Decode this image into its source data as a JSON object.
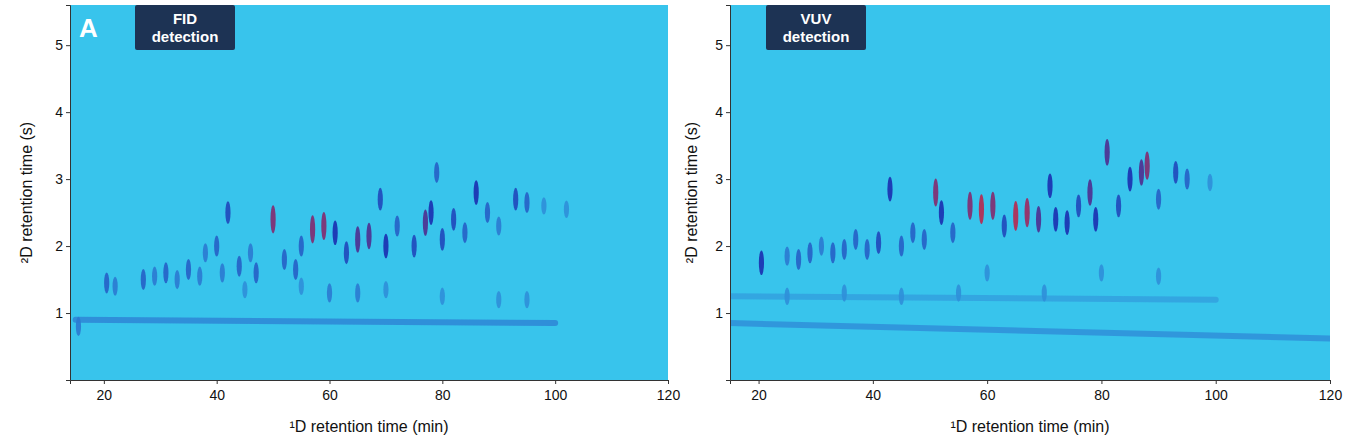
{
  "chart_data": [
    {
      "type": "heatmap",
      "label": "A",
      "title": "FID detection",
      "xlabel": "¹D retention time (min)",
      "ylabel": "²D retention time (s)",
      "xlim": [
        14,
        120
      ],
      "xticks": [
        20,
        40,
        60,
        80,
        100,
        120
      ],
      "ylim": [
        0,
        5.6
      ],
      "yticks": [
        1,
        2,
        3,
        4,
        5
      ],
      "zlim": [
        0,
        1
      ],
      "peaks": {
        "x": [
          15.5,
          20.5,
          22,
          27,
          29,
          31,
          33,
          35,
          37,
          38,
          40,
          41,
          42,
          44,
          46,
          47,
          50,
          52,
          54,
          55,
          57,
          59,
          61,
          63,
          65,
          67,
          69,
          70,
          72,
          75,
          77,
          78,
          80,
          82,
          84,
          86,
          88,
          90,
          93,
          95,
          98,
          102,
          79,
          45,
          55,
          60,
          65,
          70,
          80,
          90,
          95
        ],
        "y": [
          0.8,
          1.45,
          1.4,
          1.5,
          1.55,
          1.6,
          1.5,
          1.65,
          1.55,
          1.9,
          2.0,
          1.6,
          2.5,
          1.7,
          1.9,
          1.6,
          2.4,
          1.8,
          1.65,
          2.0,
          2.25,
          2.3,
          2.2,
          1.9,
          2.1,
          2.15,
          2.7,
          2.0,
          2.3,
          2.0,
          2.35,
          2.5,
          2.1,
          2.4,
          2.2,
          2.8,
          2.5,
          2.3,
          2.7,
          2.65,
          2.6,
          2.55,
          3.1,
          1.35,
          1.4,
          1.3,
          1.3,
          1.35,
          1.25,
          1.2,
          1.2
        ],
        "intensity": [
          0.4,
          0.5,
          0.4,
          0.5,
          0.4,
          0.5,
          0.4,
          0.5,
          0.4,
          0.4,
          0.5,
          0.4,
          0.6,
          0.5,
          0.4,
          0.5,
          0.9,
          0.5,
          0.5,
          0.5,
          0.9,
          0.9,
          0.7,
          0.6,
          0.8,
          0.8,
          0.6,
          0.7,
          0.5,
          0.6,
          0.8,
          0.7,
          0.6,
          0.6,
          0.5,
          0.7,
          0.5,
          0.4,
          0.6,
          0.5,
          0.3,
          0.3,
          0.5,
          0.3,
          0.3,
          0.4,
          0.4,
          0.3,
          0.3,
          0.3,
          0.3
        ]
      },
      "bands": {
        "x0": [
          15
        ],
        "x1": [
          100
        ],
        "y0": [
          0.9
        ],
        "y1": [
          0.85
        ],
        "intensity": [
          0.35
        ]
      }
    },
    {
      "type": "heatmap",
      "title": "VUV detection",
      "xlabel": "¹D retention time (min)",
      "ylabel": "²D retention time (s)",
      "xlim": [
        15,
        120
      ],
      "xticks": [
        20,
        40,
        60,
        80,
        100,
        120
      ],
      "ylim": [
        0,
        5.6
      ],
      "yticks": [
        1,
        2,
        3,
        4,
        5
      ],
      "zlim": [
        0,
        1
      ],
      "peaks": {
        "x": [
          20.5,
          25,
          27,
          29,
          31,
          33,
          35,
          37,
          39,
          41,
          43,
          45,
          47,
          49,
          51,
          52,
          54,
          57,
          59,
          61,
          63,
          65,
          67,
          69,
          71,
          72,
          74,
          76,
          78,
          79,
          81,
          83,
          85,
          87,
          88,
          90,
          93,
          95,
          99,
          25,
          35,
          45,
          55,
          60,
          70,
          80,
          90
        ],
        "y": [
          1.75,
          1.85,
          1.8,
          1.9,
          2.0,
          1.9,
          1.95,
          2.1,
          1.95,
          2.05,
          2.85,
          2.0,
          2.2,
          2.1,
          2.8,
          2.5,
          2.2,
          2.6,
          2.55,
          2.6,
          2.3,
          2.45,
          2.5,
          2.4,
          2.9,
          2.4,
          2.35,
          2.6,
          2.8,
          2.4,
          3.4,
          2.6,
          3.0,
          3.1,
          3.2,
          2.7,
          3.1,
          3.0,
          2.95,
          1.25,
          1.3,
          1.25,
          1.3,
          1.6,
          1.3,
          1.6,
          1.55
        ],
        "intensity": [
          0.7,
          0.4,
          0.5,
          0.5,
          0.4,
          0.5,
          0.5,
          0.5,
          0.5,
          0.6,
          0.7,
          0.5,
          0.5,
          0.5,
          0.9,
          0.7,
          0.5,
          0.9,
          1.0,
          0.9,
          0.6,
          1.0,
          0.95,
          0.8,
          0.7,
          0.7,
          0.7,
          0.6,
          0.8,
          0.7,
          0.8,
          0.6,
          0.7,
          0.8,
          0.9,
          0.5,
          0.6,
          0.5,
          0.3,
          0.3,
          0.3,
          0.3,
          0.3,
          0.3,
          0.3,
          0.3,
          0.3
        ]
      },
      "bands": {
        "x0": [
          15,
          15
        ],
        "x1": [
          120,
          100
        ],
        "y0": [
          0.85,
          1.25
        ],
        "y1": [
          0.62,
          1.2
        ],
        "intensity": [
          0.3,
          0.2
        ]
      }
    }
  ]
}
